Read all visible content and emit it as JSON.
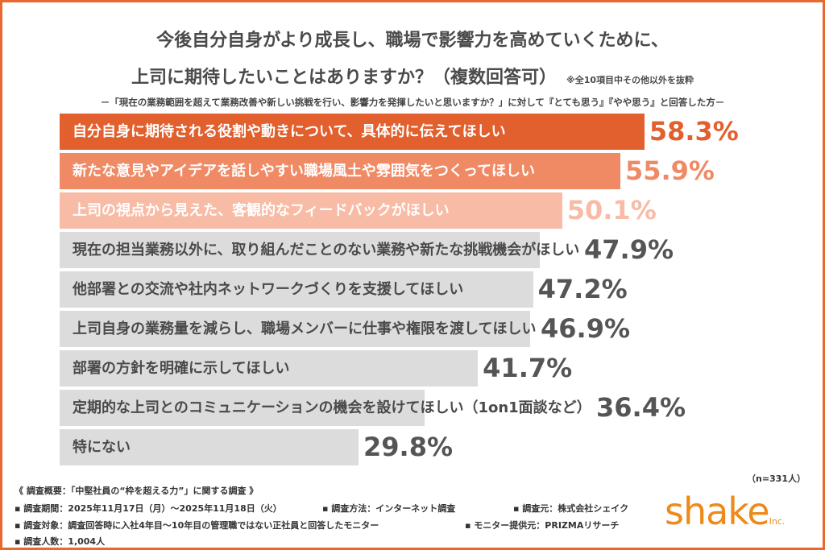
{
  "chart_data": {
    "type": "bar",
    "orientation": "horizontal",
    "title": [
      "今後自分自身がより成長し、職場で影響力を高めていくために、",
      "上司に期待したいことはありますか？（複数回答可）"
    ],
    "title_note": "※全10項目中その他以外を抜粋",
    "subtitle": "－「現在の業務範囲を超えて業務改善や新しい挑戦を行い、影響力を発揮したいと思いますか？」に対して『とても思う』『やや思う』と回答した方－",
    "categories": [
      "自分自身に期待される役割や動きについて、具体的に伝えてほしい",
      "新たな意見やアイデアを話しやすい職場風土や雰囲気をつくってほしい",
      "上司の視点から見えた、客観的なフィードバックがほしい",
      "現在の担当業務以外に、取り組んだことのない業務や新たな挑戦機会がほしい",
      "他部署との交流や社内ネットワークづくりを支援してほしい",
      "上司自身の業務量を減らし、職場メンバーに仕事や権限を渡してほしい",
      "部署の方針を明確に示してほしい",
      "定期的な上司とのコミュニケーションの機会を設けてほしい（1on1面談など）",
      "特にない"
    ],
    "values": [
      58.3,
      55.9,
      50.1,
      47.9,
      47.2,
      46.9,
      41.7,
      36.4,
      29.8
    ],
    "value_labels": [
      "58.3%",
      "55.9%",
      "50.1%",
      "47.9%",
      "47.2%",
      "46.9%",
      "41.7%",
      "36.4%",
      "29.8%"
    ],
    "unit": "%",
    "bar_colors": [
      "#E25F2E",
      "#F08A65",
      "#F8BBA5",
      "#DCDCDC",
      "#DCDCDC",
      "#DCDCDC",
      "#DCDCDC",
      "#DCDCDC",
      "#DCDCDC"
    ],
    "label_colors": [
      "#FFFFFF",
      "#FFFFFF",
      "#FFFFFF",
      "#4A4A4A",
      "#4A4A4A",
      "#4A4A4A",
      "#4A4A4A",
      "#4A4A4A",
      "#4A4A4A"
    ],
    "pct_colors": [
      "#E25F2E",
      "#F08A65",
      "#F8BBA5",
      "#555555",
      "#555555",
      "#555555",
      "#555555",
      "#555555",
      "#555555"
    ],
    "sample": "（n=331人）"
  },
  "footer": {
    "overview": "《 調査概要：「中堅社員の“枠を超える力”」に関する調査 》",
    "period": "▪ 調査期間：2025年11月17日（月）～2025年11月18日（火）",
    "method": "▪ 調査方法：インターネット調査",
    "source": "▪ 調査元：株式会社シェイク",
    "target": "▪ 調査対象：調査回答時に入社4年目～10年目の管理職ではない正社員と回答したモニター",
    "provider": "▪ モニター提供元：PRIZMAリサーチ",
    "count": "▪ 調査人数：1,004人"
  },
  "logo": {
    "text": "shake",
    "suffix": "Inc.",
    "color": "#EE8A1A"
  },
  "frame_color": "#E8692F"
}
